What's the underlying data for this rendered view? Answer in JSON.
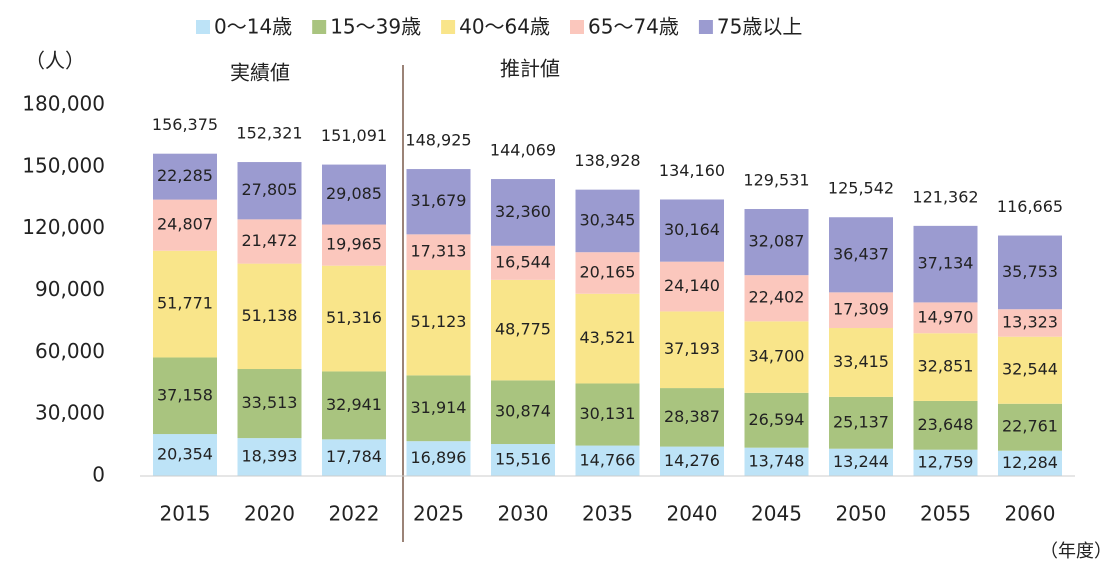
{
  "chart_data": {
    "type": "stacked_bar",
    "y_label": "（人）",
    "x_label": "（年度）",
    "annotations": [
      "実績値",
      "推計値"
    ],
    "categories": [
      "2015",
      "2020",
      "2022",
      "2025",
      "2030",
      "2035",
      "2040",
      "2045",
      "2050",
      "2055",
      "2060"
    ],
    "series": [
      {
        "name": "0〜14歳",
        "color": "#bde3f7",
        "values": [
          20354,
          18393,
          17784,
          16896,
          15516,
          14766,
          14276,
          13748,
          13244,
          12759,
          12284
        ],
        "value_labels": [
          "20,354",
          "18,393",
          "17,784",
          "16,896",
          "15,516",
          "14,766",
          "14,276",
          "13,748",
          "13,244",
          "12,759",
          "12,284"
        ]
      },
      {
        "name": "15〜39歳",
        "color": "#a9c47f",
        "values": [
          37158,
          33513,
          32941,
          31914,
          30874,
          30131,
          28387,
          26594,
          25137,
          23648,
          22761
        ],
        "value_labels": [
          "37,158",
          "33,513",
          "32,941",
          "31,914",
          "30,874",
          "30,131",
          "28,387",
          "26,594",
          "25,137",
          "23,648",
          "22,761"
        ]
      },
      {
        "name": "40〜64歳",
        "color": "#f9e58a",
        "values": [
          51771,
          51138,
          51316,
          51123,
          48775,
          43521,
          37193,
          34700,
          33415,
          32851,
          32544
        ],
        "value_labels": [
          "51,771",
          "51,138",
          "51,316",
          "51,123",
          "48,775",
          "43,521",
          "37,193",
          "34,700",
          "33,415",
          "32,851",
          "32,544"
        ]
      },
      {
        "name": "65〜74歳",
        "color": "#fbc7bd",
        "values": [
          24807,
          21472,
          19965,
          17313,
          16544,
          20165,
          24140,
          22402,
          17309,
          14970,
          13323
        ],
        "value_labels": [
          "24,807",
          "21,472",
          "19,965",
          "17,313",
          "16,544",
          "20,165",
          "24,140",
          "22,402",
          "17,309",
          "14,970",
          "13,323"
        ]
      },
      {
        "name": "75歳以上",
        "color": "#9b9bd0",
        "values": [
          22285,
          27805,
          29085,
          31679,
          32360,
          30345,
          30164,
          32087,
          36437,
          37134,
          35753
        ],
        "value_labels": [
          "22,285",
          "27,805",
          "29,085",
          "31,679",
          "32,360",
          "30,345",
          "30,164",
          "32,087",
          "36,437",
          "37,134",
          "35,753"
        ]
      }
    ],
    "totals": [
      156375,
      152321,
      151091,
      148925,
      144069,
      138928,
      134160,
      129531,
      125542,
      121362,
      116665
    ],
    "total_labels": [
      "156,375",
      "152,321",
      "151,091",
      "148,925",
      "144,069",
      "138,928",
      "134,160",
      "129,531",
      "125,542",
      "121,362",
      "116,665"
    ],
    "ylim": [
      0,
      180000
    ],
    "yticks": [
      0,
      {
        "value": 30000,
        "label": "30,000"
      },
      {
        "value": 60000,
        "label": "60,000"
      },
      {
        "value": 90000,
        "label": "90,000"
      },
      {
        "value": 120000,
        "label": "120,000"
      },
      {
        "value": 150000,
        "label": "150,000"
      },
      {
        "value": 180000,
        "label": "180,000"
      }
    ]
  }
}
